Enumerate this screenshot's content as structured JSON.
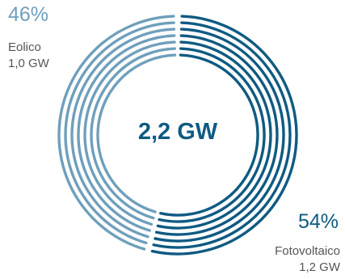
{
  "chart_data": {
    "type": "pie",
    "total": "2,2 GW",
    "series": [
      {
        "name": "Fotovoltaico",
        "percent": 54,
        "percent_label": "54%",
        "value_label": "1,2 GW",
        "color": "#0f5a82"
      },
      {
        "name": "Eolico",
        "percent": 46,
        "percent_label": "46%",
        "value_label": "1,0 GW",
        "color": "#6f9fbc"
      }
    ]
  }
}
